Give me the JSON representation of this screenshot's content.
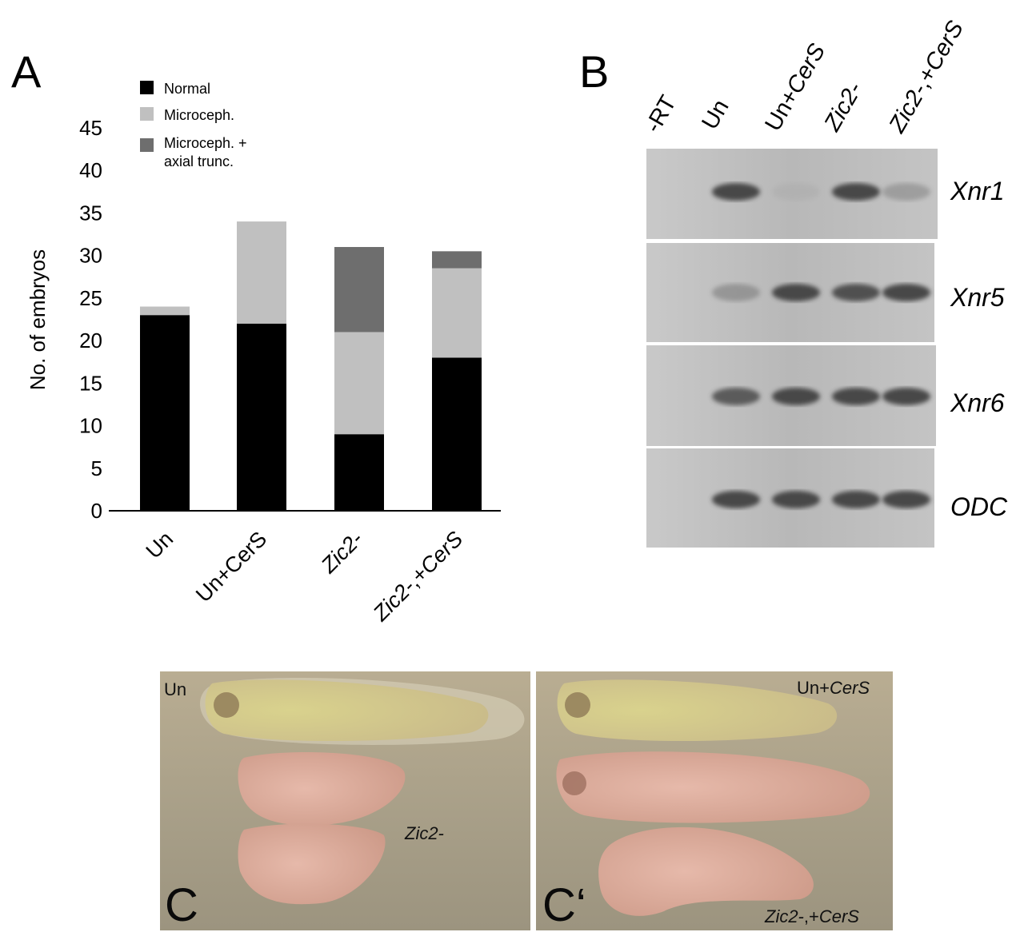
{
  "panel_a": {
    "letter": "A",
    "legend": [
      {
        "label": "Normal",
        "color": "#000000"
      },
      {
        "label": "Microceph.",
        "color": "#c0c0c0"
      },
      {
        "label": "Microceph. +",
        "label2": "axial trunc.",
        "color": "#6e6e6e"
      }
    ]
  },
  "chart_data": {
    "type": "bar",
    "stacked": true,
    "title": "",
    "xlabel": "",
    "ylabel": "No. of embryos",
    "ylim": [
      0,
      45
    ],
    "yticks": [
      0,
      5,
      10,
      15,
      20,
      25,
      30,
      35,
      40,
      45
    ],
    "categories": [
      "Un",
      "Un+CerS",
      "Zic2-",
      "Zic2-,+CerS"
    ],
    "series": [
      {
        "name": "Normal",
        "values": [
          23,
          22,
          9,
          18
        ],
        "color": "#000000"
      },
      {
        "name": "Microceph.",
        "values": [
          1,
          12,
          12,
          10.5
        ],
        "color": "#c0c0c0"
      },
      {
        "name": "Microceph. + axial trunc.",
        "values": [
          0,
          0,
          10,
          2
        ],
        "color": "#6e6e6e"
      }
    ],
    "legend_position": "top-left",
    "grid": false
  },
  "panel_b": {
    "letter": "B",
    "lanes": [
      "-RT",
      "Un",
      "Un+CerS",
      "Zic2-",
      "Zic2-,+CerS"
    ],
    "genes": [
      "Xnr1",
      "Xnr5",
      "Xnr6",
      "ODC"
    ],
    "band_intensity": [
      [
        0,
        0.95,
        0.25,
        0.95,
        0.45
      ],
      [
        0,
        0.5,
        0.95,
        0.9,
        0.95
      ],
      [
        0,
        0.85,
        0.95,
        0.95,
        0.95
      ],
      [
        0,
        0.95,
        0.95,
        0.95,
        0.95
      ]
    ]
  },
  "panel_c": {
    "letter": "C",
    "label_top": "Un",
    "label_mid": "Zic2-"
  },
  "panel_c2": {
    "letter": "C‘",
    "label_top_a": "Un+",
    "label_top_b": "CerS",
    "label_bottom_a": "Zic2-",
    "label_bottom_b": ",+",
    "label_bottom_c": "CerS"
  }
}
